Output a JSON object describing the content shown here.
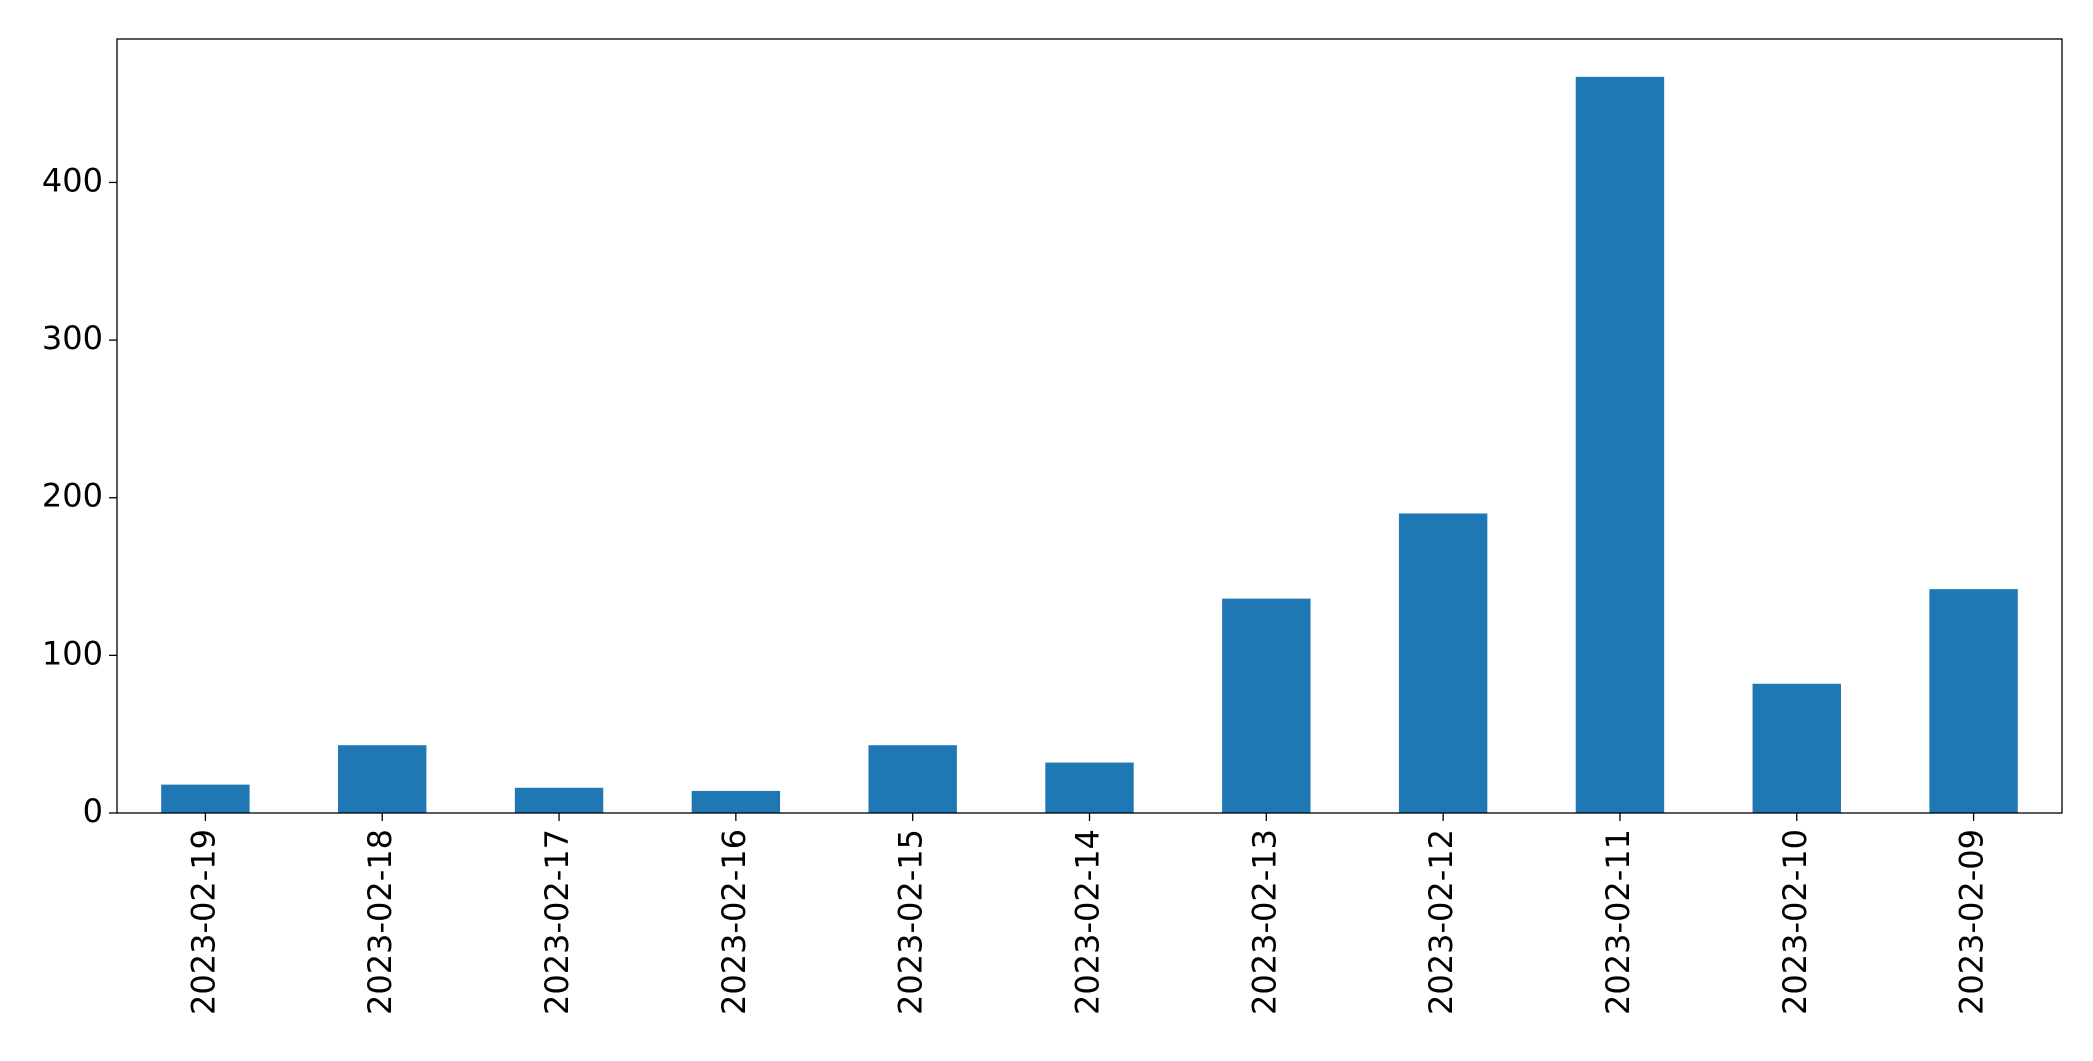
{
  "chart_data": {
    "type": "bar",
    "categories": [
      "2023-02-19",
      "2023-02-18",
      "2023-02-17",
      "2023-02-16",
      "2023-02-15",
      "2023-02-14",
      "2023-02-13",
      "2023-02-12",
      "2023-02-11",
      "2023-02-10",
      "2023-02-09"
    ],
    "values": [
      18,
      43,
      16,
      14,
      43,
      32,
      136,
      190,
      467,
      82,
      142
    ],
    "color": "#1f77b4",
    "ylim": [
      0,
      491
    ],
    "yticks": [
      0,
      100,
      200,
      300,
      400
    ],
    "grid": false
  }
}
